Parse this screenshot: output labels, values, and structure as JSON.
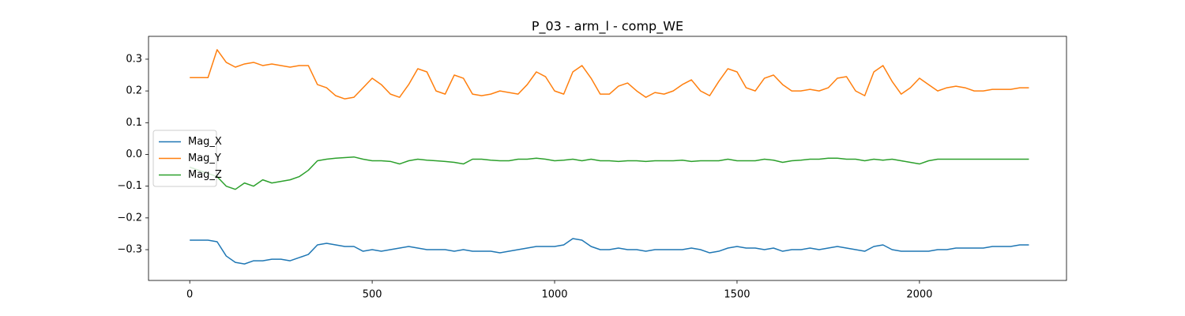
{
  "chart_data": {
    "type": "line",
    "title": "P_03 - arm_l - comp_WE",
    "x": [
      0,
      25,
      50,
      75,
      100,
      125,
      150,
      175,
      200,
      225,
      250,
      275,
      300,
      325,
      350,
      375,
      400,
      425,
      450,
      475,
      500,
      525,
      550,
      575,
      600,
      625,
      650,
      675,
      700,
      725,
      750,
      775,
      800,
      825,
      850,
      875,
      900,
      925,
      950,
      975,
      1000,
      1025,
      1050,
      1075,
      1100,
      1125,
      1150,
      1175,
      1200,
      1225,
      1250,
      1275,
      1300,
      1325,
      1350,
      1375,
      1400,
      1425,
      1450,
      1475,
      1500,
      1525,
      1550,
      1575,
      1600,
      1625,
      1650,
      1675,
      1700,
      1725,
      1750,
      1775,
      1800,
      1825,
      1850,
      1875,
      1900,
      1925,
      1950,
      1975,
      2000,
      2025,
      2050,
      2075,
      2100,
      2125,
      2150,
      2175,
      2200,
      2225,
      2250,
      2275,
      2300
    ],
    "series": [
      {
        "name": "Mag_X",
        "color": "#1f77b4",
        "values": [
          -0.27,
          -0.27,
          -0.27,
          -0.275,
          -0.32,
          -0.34,
          -0.345,
          -0.335,
          -0.335,
          -0.33,
          -0.33,
          -0.335,
          -0.325,
          -0.315,
          -0.285,
          -0.28,
          -0.285,
          -0.29,
          -0.29,
          -0.305,
          -0.3,
          -0.305,
          -0.3,
          -0.295,
          -0.29,
          -0.295,
          -0.3,
          -0.3,
          -0.3,
          -0.305,
          -0.3,
          -0.305,
          -0.305,
          -0.305,
          -0.31,
          -0.305,
          -0.3,
          -0.295,
          -0.29,
          -0.29,
          -0.29,
          -0.285,
          -0.265,
          -0.27,
          -0.29,
          -0.3,
          -0.3,
          -0.295,
          -0.3,
          -0.3,
          -0.305,
          -0.3,
          -0.3,
          -0.3,
          -0.3,
          -0.295,
          -0.3,
          -0.31,
          -0.305,
          -0.295,
          -0.29,
          -0.295,
          -0.295,
          -0.3,
          -0.295,
          -0.305,
          -0.3,
          -0.3,
          -0.295,
          -0.3,
          -0.295,
          -0.29,
          -0.295,
          -0.3,
          -0.305,
          -0.29,
          -0.285,
          -0.3,
          -0.305,
          -0.305,
          -0.305,
          -0.305,
          -0.3,
          -0.3,
          -0.295,
          -0.295,
          -0.295,
          -0.295,
          -0.29,
          -0.29,
          -0.29,
          -0.285,
          -0.285
        ]
      },
      {
        "name": "Mag_Y",
        "color": "#ff7f0e",
        "values": [
          0.242,
          0.242,
          0.242,
          0.33,
          0.29,
          0.275,
          0.285,
          0.29,
          0.28,
          0.285,
          0.28,
          0.275,
          0.28,
          0.28,
          0.22,
          0.21,
          0.185,
          0.175,
          0.18,
          0.21,
          0.24,
          0.22,
          0.19,
          0.18,
          0.22,
          0.27,
          0.26,
          0.2,
          0.19,
          0.25,
          0.24,
          0.19,
          0.185,
          0.19,
          0.2,
          0.195,
          0.19,
          0.22,
          0.26,
          0.245,
          0.2,
          0.19,
          0.26,
          0.28,
          0.24,
          0.19,
          0.19,
          0.215,
          0.225,
          0.2,
          0.18,
          0.195,
          0.19,
          0.2,
          0.22,
          0.235,
          0.2,
          0.185,
          0.23,
          0.27,
          0.26,
          0.21,
          0.2,
          0.24,
          0.25,
          0.22,
          0.2,
          0.2,
          0.205,
          0.2,
          0.21,
          0.24,
          0.245,
          0.2,
          0.185,
          0.26,
          0.28,
          0.23,
          0.19,
          0.21,
          0.24,
          0.22,
          0.2,
          0.21,
          0.215,
          0.21,
          0.2,
          0.2,
          0.205,
          0.205,
          0.205,
          0.21,
          0.21
        ]
      },
      {
        "name": "Mag_Z",
        "color": "#2ca02c",
        "values": [
          -0.04,
          -0.05,
          -0.06,
          -0.07,
          -0.1,
          -0.11,
          -0.09,
          -0.1,
          -0.08,
          -0.09,
          -0.085,
          -0.08,
          -0.07,
          -0.05,
          -0.02,
          -0.015,
          -0.012,
          -0.01,
          -0.008,
          -0.015,
          -0.02,
          -0.02,
          -0.022,
          -0.03,
          -0.02,
          -0.015,
          -0.018,
          -0.02,
          -0.022,
          -0.025,
          -0.03,
          -0.015,
          -0.015,
          -0.018,
          -0.02,
          -0.02,
          -0.015,
          -0.015,
          -0.012,
          -0.015,
          -0.02,
          -0.018,
          -0.015,
          -0.02,
          -0.015,
          -0.02,
          -0.02,
          -0.022,
          -0.02,
          -0.02,
          -0.022,
          -0.02,
          -0.02,
          -0.02,
          -0.018,
          -0.022,
          -0.02,
          -0.02,
          -0.02,
          -0.015,
          -0.02,
          -0.02,
          -0.02,
          -0.015,
          -0.018,
          -0.025,
          -0.02,
          -0.018,
          -0.015,
          -0.015,
          -0.012,
          -0.012,
          -0.015,
          -0.015,
          -0.02,
          -0.015,
          -0.018,
          -0.015,
          -0.02,
          -0.025,
          -0.03,
          -0.02,
          -0.015,
          -0.015,
          -0.015,
          -0.015,
          -0.015,
          -0.015,
          -0.015,
          -0.015,
          -0.015,
          -0.015,
          -0.015
        ]
      }
    ],
    "xlim": [
      -113,
      2403
    ],
    "xticks": [
      0,
      500,
      1000,
      1500,
      2000
    ],
    "ylim": [
      -0.397,
      0.372
    ],
    "yticks": [
      {
        "value": -0.3,
        "label": "−0.3"
      },
      {
        "value": -0.2,
        "label": "−0.2"
      },
      {
        "value": -0.1,
        "label": "−0.1"
      },
      {
        "value": 0,
        "label": "0.0"
      },
      0.1,
      0.2,
      0.3
    ],
    "legend": "center left"
  }
}
